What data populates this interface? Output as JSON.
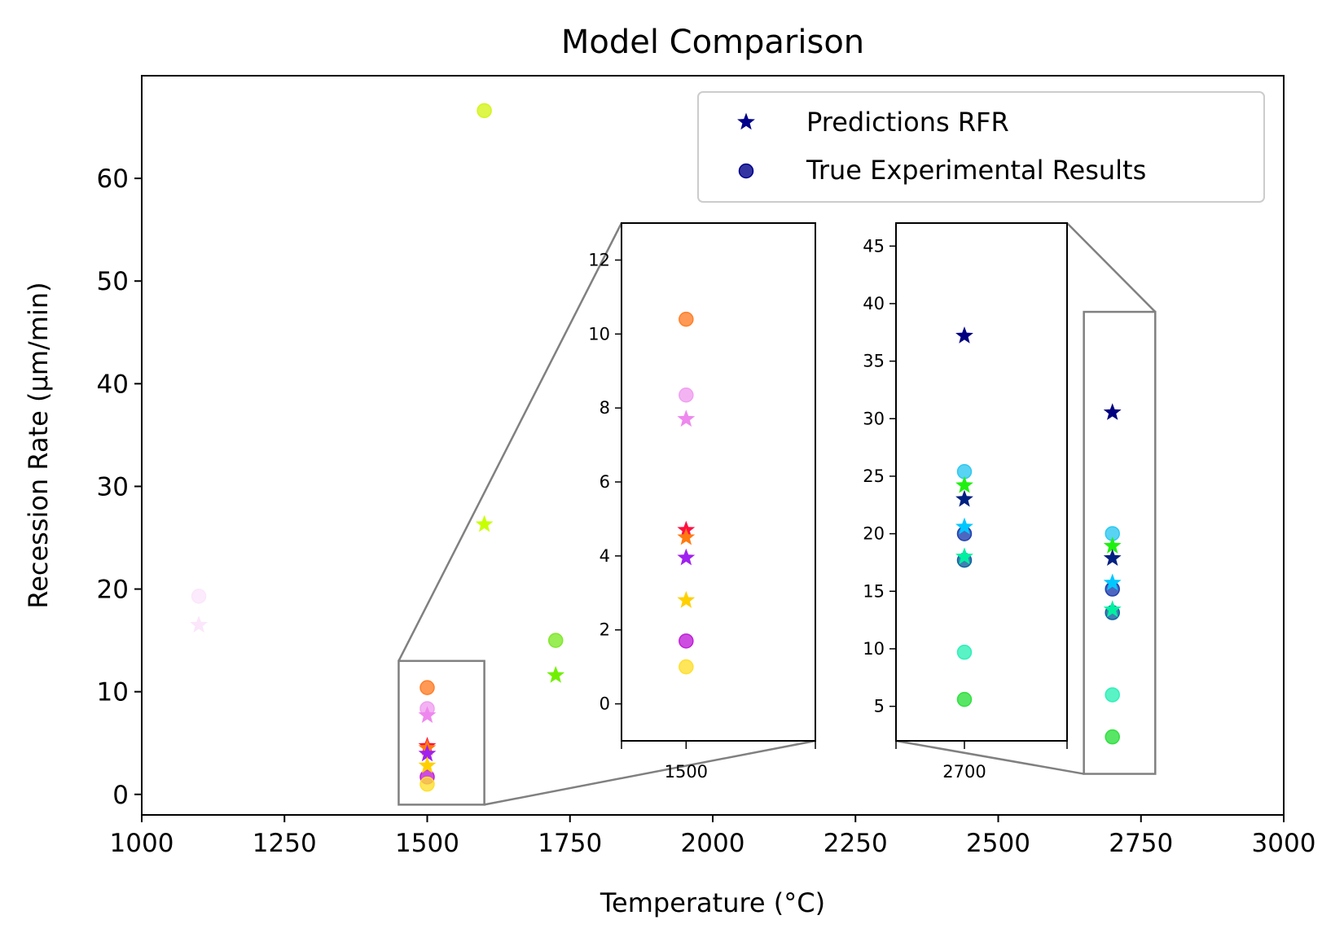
{
  "chart_data": {
    "type": "scatter",
    "title": "Model Comparison",
    "xlabel": "Temperature (°C)",
    "ylabel": "Recession Rate (μm/min)",
    "xlim": [
      1000,
      3000
    ],
    "ylim": [
      -2,
      70
    ],
    "xticks": [
      "1000",
      "1250",
      "1500",
      "1750",
      "2000",
      "2250",
      "2500",
      "2750",
      "3000"
    ],
    "yticks": [
      "0",
      "10",
      "20",
      "30",
      "40",
      "50",
      "60"
    ],
    "xtick_values": [
      1000,
      1250,
      1500,
      1750,
      2000,
      2250,
      2500,
      2750,
      3000
    ],
    "ytick_values": [
      0,
      10,
      20,
      30,
      40,
      50,
      60
    ],
    "grid": false,
    "legend_position": "top-right",
    "legend": [
      {
        "label": "Predictions RFR",
        "marker": "star",
        "color": "#00008b"
      },
      {
        "label": "True Experimental Results",
        "marker": "circle",
        "color": "#00008b"
      }
    ],
    "series": [
      {
        "marker": "circle",
        "points": [
          {
            "x": 1100,
            "y": 19.3,
            "color": "#fbe6fb"
          },
          {
            "x": 1600,
            "y": 66.6,
            "color": "#d4f41a"
          },
          {
            "x": 1725,
            "y": 15.0,
            "color": "#7fe82a"
          },
          {
            "x": 1500,
            "y": 10.4,
            "color": "#ff7f2a"
          },
          {
            "x": 1500,
            "y": 8.35,
            "color": "#f0a0f0"
          },
          {
            "x": 1500,
            "y": 1.7,
            "color": "#c020d8"
          },
          {
            "x": 1500,
            "y": 1.0,
            "color": "#ffdf30"
          },
          {
            "x": 2700,
            "y": 25.4,
            "color": "#30c8f0"
          },
          {
            "x": 2700,
            "y": 20.0,
            "color": "#2040b0"
          },
          {
            "x": 2700,
            "y": 17.7,
            "color": "#1060a0"
          },
          {
            "x": 2700,
            "y": 9.7,
            "color": "#30f0b8"
          },
          {
            "x": 2700,
            "y": 5.6,
            "color": "#30e040"
          }
        ]
      },
      {
        "marker": "star",
        "points": [
          {
            "x": 1100,
            "y": 16.5,
            "color": "#fbe6fb"
          },
          {
            "x": 1600,
            "y": 26.3,
            "color": "#c8ff00"
          },
          {
            "x": 1725,
            "y": 11.6,
            "color": "#70f000"
          },
          {
            "x": 1500,
            "y": 7.7,
            "color": "#ee88ee"
          },
          {
            "x": 1500,
            "y": 4.7,
            "color": "#ff1040"
          },
          {
            "x": 1500,
            "y": 4.5,
            "color": "#ff7a10"
          },
          {
            "x": 1500,
            "y": 3.95,
            "color": "#a020f0"
          },
          {
            "x": 1500,
            "y": 2.8,
            "color": "#ffd000"
          },
          {
            "x": 2700,
            "y": 37.2,
            "color": "#000080"
          },
          {
            "x": 2700,
            "y": 24.2,
            "color": "#20f010"
          },
          {
            "x": 2700,
            "y": 23.0,
            "color": "#002080"
          },
          {
            "x": 2700,
            "y": 20.6,
            "color": "#00c8ff"
          },
          {
            "x": 2700,
            "y": 18.0,
            "color": "#00f0a0"
          }
        ]
      }
    ],
    "insets": [
      {
        "xlim": [
          1450,
          1600
        ],
        "ylim": [
          -1,
          13
        ],
        "xticks": [
          "1500"
        ],
        "xtick_values": [
          1500
        ],
        "yticks": [
          "0",
          "2",
          "4",
          "6",
          "8",
          "10",
          "12"
        ],
        "ytick_values": [
          0,
          2,
          4,
          6,
          8,
          10,
          12
        ]
      },
      {
        "xlim": [
          2650,
          2775
        ],
        "ylim": [
          2,
          47
        ],
        "xticks": [
          "2700"
        ],
        "xtick_values": [
          2700
        ],
        "yticks": [
          "5",
          "10",
          "15",
          "20",
          "25",
          "30",
          "35",
          "40",
          "45"
        ],
        "ytick_values": [
          5,
          10,
          15,
          20,
          25,
          30,
          35,
          40,
          45
        ]
      }
    ]
  }
}
